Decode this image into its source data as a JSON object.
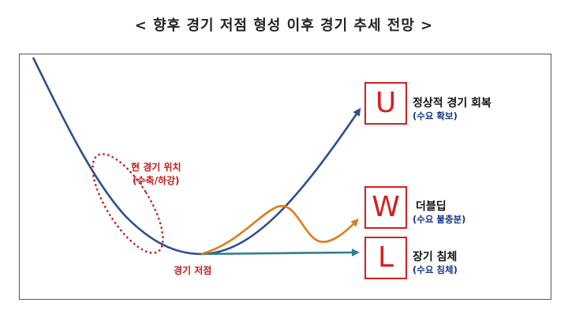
{
  "title": "< 향후 경기 저점 형성 이후 경기 추세 전망 >",
  "annotation": {
    "line1": "현 경기 위치",
    "line2": "(수축/하강)"
  },
  "trough_label": "경기 저점",
  "scenarios": [
    {
      "letter": "U",
      "label": "정상적 경기 회복",
      "sub": "(수요 확보)",
      "color": "#2d4f8e"
    },
    {
      "letter": "W",
      "label": "더블딥",
      "sub": "(수요 불충분)",
      "color": "#e07b1a"
    },
    {
      "letter": "L",
      "label": "장기 침체",
      "sub": "(수요 침체)",
      "color": "#2f7f8f"
    }
  ],
  "colors": {
    "main_curve": "#2d4f8e",
    "annotation": "#c41a1a",
    "box_border": "#d42020"
  }
}
